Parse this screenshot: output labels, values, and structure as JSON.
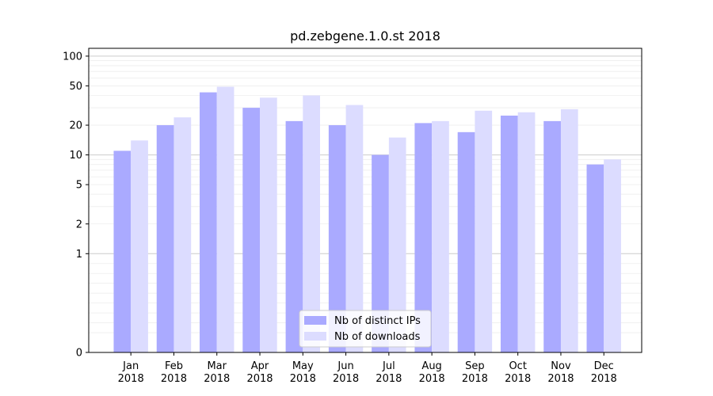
{
  "chart_data": {
    "type": "bar",
    "title": "pd.zebgene.1.0.st 2018",
    "xlabel": "",
    "ylabel": "",
    "y_scale": "symlog",
    "ylim": [
      0,
      120
    ],
    "y_ticks": [
      0,
      1,
      2,
      5,
      10,
      20,
      50,
      100
    ],
    "y_tick_labels": [
      "0",
      "1",
      "2",
      "5",
      "10",
      "20",
      "50",
      "100"
    ],
    "categories": [
      "Jan\n2018",
      "Feb\n2018",
      "Mar\n2018",
      "Apr\n2018",
      "May\n2018",
      "Jun\n2018",
      "Jul\n2018",
      "Aug\n2018",
      "Sep\n2018",
      "Oct\n2018",
      "Nov\n2018",
      "Dec\n2018"
    ],
    "series": [
      {
        "name": "Nb of distinct IPs",
        "color": "#aaaaff",
        "values": [
          11,
          20,
          43,
          30,
          22,
          20,
          10,
          21,
          17,
          25,
          22,
          8
        ]
      },
      {
        "name": "Nb of downloads",
        "color": "#dcdcff",
        "values": [
          14,
          24,
          49,
          38,
          40,
          32,
          15,
          22,
          28,
          27,
          29,
          9
        ]
      }
    ],
    "legend_position": "bottom-center",
    "grid": "horizontal"
  }
}
